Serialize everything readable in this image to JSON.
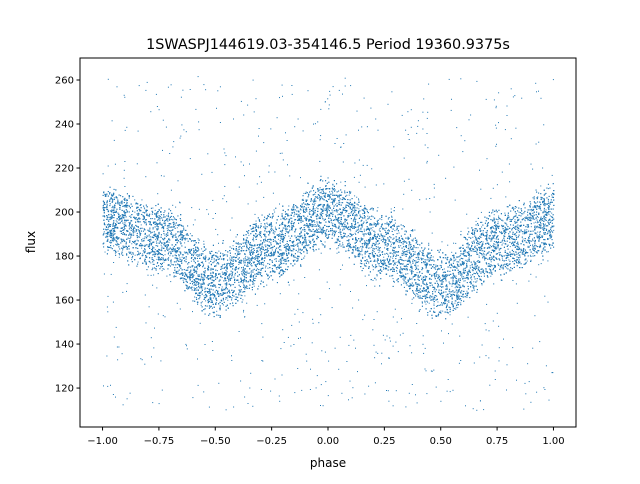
{
  "chart_data": {
    "type": "scatter",
    "title": "1SWASPJ144619.03-354146.5 Period 19360.9375s",
    "xlabel": "phase",
    "ylabel": "flux",
    "xlim": [
      -1.1,
      1.1
    ],
    "ylim": [
      102.3,
      270
    ],
    "xticks": [
      "−1.00",
      "−0.75",
      "−0.50",
      "−0.25",
      "0.00",
      "0.25",
      "0.50",
      "0.75",
      "1.00"
    ],
    "xtick_values": [
      -1,
      -0.75,
      -0.5,
      -0.25,
      0,
      0.25,
      0.5,
      0.75,
      1
    ],
    "yticks": [
      "120",
      "140",
      "160",
      "180",
      "200",
      "220",
      "240",
      "260"
    ],
    "ytick_values": [
      120,
      140,
      160,
      180,
      200,
      220,
      240,
      260
    ],
    "grid": false,
    "marker_color": "#1f77b4",
    "trend": {
      "phase": [
        -1,
        -0.75,
        -0.5,
        -0.25,
        0,
        0.25,
        0.5,
        0.75,
        1
      ],
      "flux_mean": [
        197,
        188,
        168,
        185,
        200,
        185,
        167,
        186,
        197
      ],
      "band_halfwidth": 15
    },
    "outlier_flux_range": [
      110,
      262
    ]
  }
}
